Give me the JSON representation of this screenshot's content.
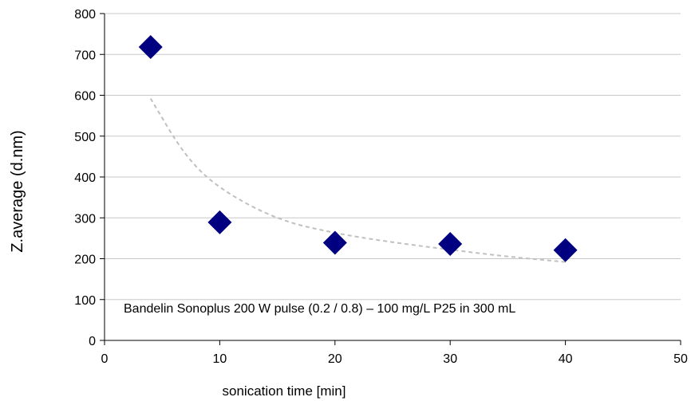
{
  "chart_data": {
    "type": "scatter",
    "title": "",
    "xlabel": "sonication time [min]",
    "ylabel": "Z.average (d.nm)",
    "xlim": [
      0,
      50
    ],
    "ylim": [
      0,
      800
    ],
    "xticks": [
      0,
      10,
      20,
      30,
      40,
      50
    ],
    "yticks": [
      0,
      100,
      200,
      300,
      400,
      500,
      600,
      700,
      800
    ],
    "grid": "horizontal",
    "legend": "none",
    "marker": "diamond",
    "series": [
      {
        "name": "",
        "color": "#000080",
        "x": [
          4,
          10,
          20,
          30,
          40
        ],
        "y": [
          718,
          289,
          239,
          236,
          221
        ]
      }
    ],
    "trendline": {
      "style": "dashed",
      "color": "#c0c0c0",
      "x": [
        4,
        7,
        10,
        15,
        20,
        25,
        30,
        35,
        40
      ],
      "y": [
        592,
        450,
        370,
        295,
        262,
        240,
        222,
        205,
        192
      ]
    },
    "annotation": "Bandelin Sonoplus 200 W pulse (0.2 / 0.8) – 100 mg/L P25 in 300 mL"
  }
}
